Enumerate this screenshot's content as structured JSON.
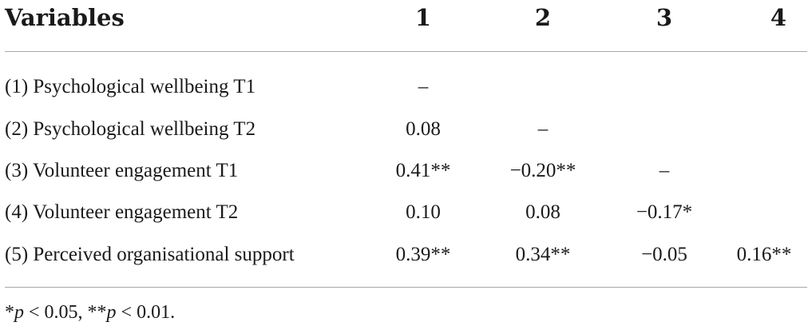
{
  "table": {
    "headers": [
      "Variables",
      "1",
      "2",
      "3",
      "4"
    ],
    "rows": [
      {
        "label": "(1) Psychological wellbeing T1",
        "cells": [
          "–",
          "",
          "",
          ""
        ]
      },
      {
        "label": "(2) Psychological wellbeing T2",
        "cells": [
          "0.08",
          "–",
          "",
          ""
        ]
      },
      {
        "label": "(3) Volunteer engagement T1",
        "cells": [
          "0.41**",
          "−0.20**",
          "–",
          ""
        ]
      },
      {
        "label": "(4) Volunteer engagement T2",
        "cells": [
          "0.10",
          "0.08",
          "−0.17*",
          ""
        ]
      },
      {
        "label": "(5) Perceived organisational support",
        "cells": [
          "0.39**",
          "0.34**",
          "−0.05",
          "0.16**"
        ]
      }
    ]
  },
  "footnote": {
    "star1": "*",
    "p1": "p",
    "t1": " < 0.05, ",
    "star2": "**",
    "p2": "p",
    "t2": " < 0.01."
  }
}
